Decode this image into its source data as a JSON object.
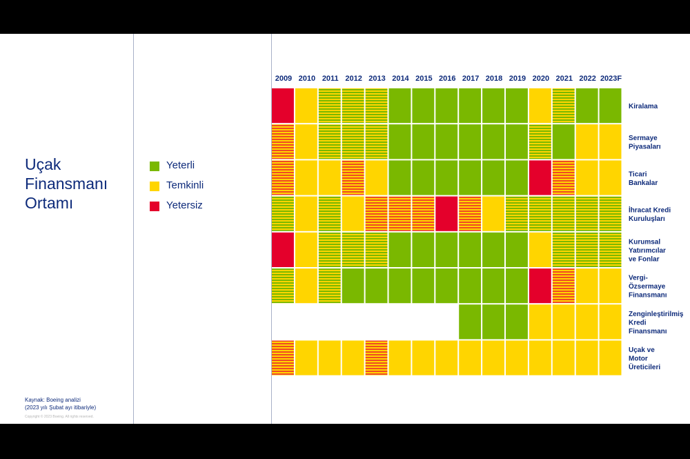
{
  "title": {
    "lines": [
      "Uçak",
      "Finansmanı",
      "Ortamı"
    ]
  },
  "legend": [
    {
      "label": "Yeterli",
      "color": "#7ab800"
    },
    {
      "label": "Temkinli",
      "color": "#ffd500"
    },
    {
      "label": "Yetersiz",
      "color": "#e4002b"
    }
  ],
  "source": {
    "line1": "Kaynak: Boeing analizi",
    "line2": "(2023 yılı Şubat ayı itibariyle)"
  },
  "copyright": "Copyright © 2023 Boeing. All rights reserved.",
  "colors": {
    "G": "#7ab800",
    "Y": "#ffd500",
    "R": "#e4002b"
  },
  "chart_data": {
    "type": "heatmap",
    "title": "Uçak Finansmanı Ortamı",
    "categories": [
      "2009",
      "2010",
      "2011",
      "2012",
      "2013",
      "2014",
      "2015",
      "2016",
      "2017",
      "2018",
      "2019",
      "2020",
      "2021",
      "2022",
      "2023F"
    ],
    "legend_key": {
      "G": "Yeterli",
      "Y": "Temkinli",
      "R": "Yetersiz",
      "GY": "Yeterli / Temkinli",
      "YR": "Temkinli / Yetersiz",
      "-": ""
    },
    "rows": [
      {
        "label": [
          "Kiralama"
        ],
        "values": [
          "R",
          "Y",
          "GY",
          "GY",
          "GY",
          "G",
          "G",
          "G",
          "G",
          "G",
          "G",
          "Y",
          "GY",
          "G",
          "G"
        ]
      },
      {
        "label": [
          "Sermaye",
          "Piyasaları"
        ],
        "values": [
          "YR",
          "Y",
          "GY",
          "GY",
          "GY",
          "G",
          "G",
          "G",
          "G",
          "G",
          "G",
          "GY",
          "G",
          "Y",
          "Y"
        ]
      },
      {
        "label": [
          "Ticari",
          "Bankalar"
        ],
        "values": [
          "YR",
          "Y",
          "Y",
          "YR",
          "Y",
          "G",
          "G",
          "G",
          "G",
          "G",
          "G",
          "R",
          "YR",
          "Y",
          "Y"
        ]
      },
      {
        "label": [
          "İhracat Kredi",
          "Kuruluşları"
        ],
        "values": [
          "GY",
          "Y",
          "GY",
          "Y",
          "YR",
          "YR",
          "YR",
          "R",
          "YR",
          "Y",
          "GY",
          "GY",
          "GY",
          "GY",
          "GY"
        ]
      },
      {
        "label": [
          "Kurumsal",
          "Yatırımcılar",
          "ve Fonlar"
        ],
        "values": [
          "R",
          "Y",
          "GY",
          "GY",
          "GY",
          "G",
          "G",
          "G",
          "G",
          "G",
          "G",
          "Y",
          "GY",
          "GY",
          "GY"
        ]
      },
      {
        "label": [
          "Vergi-",
          "Özsermaye",
          "Finansmanı"
        ],
        "values": [
          "GY",
          "Y",
          "GY",
          "G",
          "G",
          "G",
          "G",
          "G",
          "G",
          "G",
          "G",
          "R",
          "YR",
          "Y",
          "Y"
        ]
      },
      {
        "label": [
          "Zenginleştirilmiş",
          "Kredi",
          "Finansmanı"
        ],
        "values": [
          "-",
          "-",
          "-",
          "-",
          "-",
          "-",
          "-",
          "-",
          "G",
          "G",
          "G",
          "Y",
          "Y",
          "Y",
          "Y"
        ]
      },
      {
        "label": [
          "Uçak ve",
          "Motor",
          "Üreticileri"
        ],
        "values": [
          "YR",
          "Y",
          "Y",
          "Y",
          "YR",
          "Y",
          "Y",
          "Y",
          "Y",
          "Y",
          "Y",
          "Y",
          "Y",
          "Y",
          "Y"
        ]
      }
    ]
  }
}
